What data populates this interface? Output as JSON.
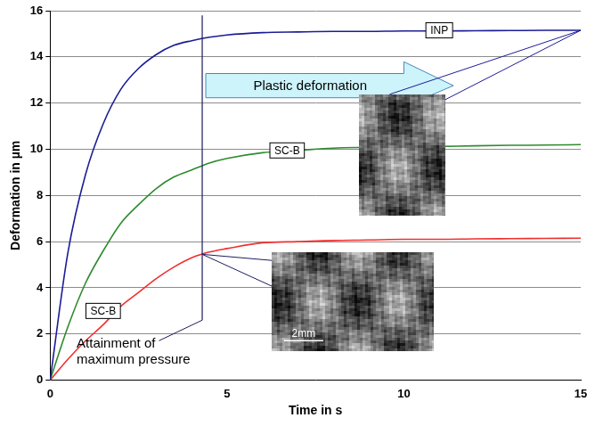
{
  "chart_data": {
    "type": "line",
    "x_label": "Time in s",
    "y_label": "Deformation in µm",
    "xlim": [
      0,
      15
    ],
    "xticks": [
      0,
      5,
      10,
      15
    ],
    "ylim": [
      0,
      16
    ],
    "yticks": [
      0,
      2,
      4,
      6,
      8,
      10,
      12,
      14,
      16
    ],
    "grid": true,
    "x": [
      0,
      0.5,
      1,
      1.5,
      2,
      2.5,
      3,
      3.5,
      4,
      4.5,
      5,
      6,
      7,
      8,
      9,
      10,
      11,
      12,
      13,
      14,
      15
    ],
    "series": [
      {
        "name": "INP",
        "color": "#1c1c96",
        "values": [
          0,
          5.5,
          8.9,
          11.1,
          12.6,
          13.5,
          14.1,
          14.5,
          14.7,
          14.85,
          14.95,
          15.05,
          15.08,
          15.1,
          15.1,
          15.12,
          15.12,
          15.13,
          15.14,
          15.15,
          15.15
        ]
      },
      {
        "name": "SC-B",
        "color": "#2e8b2e",
        "values": [
          0,
          2.3,
          4.2,
          5.6,
          6.8,
          7.6,
          8.3,
          8.8,
          9.1,
          9.4,
          9.6,
          9.85,
          9.95,
          10.05,
          10.08,
          10.1,
          10.12,
          10.15,
          10.17,
          10.18,
          10.2
        ]
      },
      {
        "name": "SC-B",
        "color": "#f03030",
        "values": [
          0,
          0.9,
          1.7,
          2.4,
          3.2,
          3.8,
          4.4,
          4.9,
          5.3,
          5.55,
          5.7,
          5.95,
          6.0,
          6.05,
          6.07,
          6.1,
          6.1,
          6.12,
          6.13,
          6.14,
          6.15
        ]
      }
    ],
    "annotations": [
      {
        "text": "Attainment of maximum pressure",
        "x": 4.3,
        "y": [
          2.6,
          15.8
        ]
      },
      {
        "text": "Plastic deformation"
      },
      {
        "text": "2mm"
      }
    ]
  }
}
